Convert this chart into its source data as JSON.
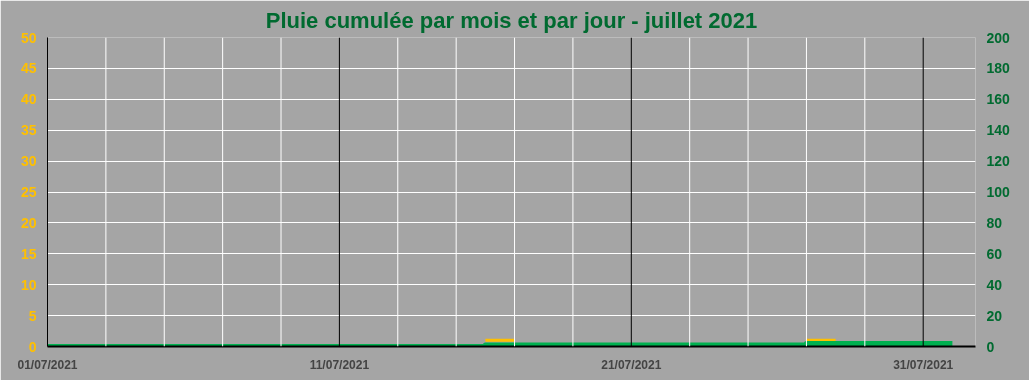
{
  "chart_data": {
    "type": "step",
    "title": "Pluie cumulée par mois et par jour - juillet 2021",
    "x": [
      "2021-07-01",
      "2021-07-02",
      "2021-07-03",
      "2021-07-04",
      "2021-07-05",
      "2021-07-06",
      "2021-07-07",
      "2021-07-08",
      "2021-07-09",
      "2021-07-10",
      "2021-07-11",
      "2021-07-12",
      "2021-07-13",
      "2021-07-14",
      "2021-07-15",
      "2021-07-16",
      "2021-07-17",
      "2021-07-18",
      "2021-07-19",
      "2021-07-20",
      "2021-07-21",
      "2021-07-22",
      "2021-07-23",
      "2021-07-24",
      "2021-07-25",
      "2021-07-26",
      "2021-07-27",
      "2021-07-28",
      "2021-07-29",
      "2021-07-30",
      "2021-07-31",
      "2021-08-01"
    ],
    "series": [
      {
        "color": "#ffc000",
        "type": "line",
        "x": [
          "2021-07-16",
          "2021-07-17",
          "2021-07-22",
          "2021-07-27",
          "2021-07-28"
        ],
        "values": [
          1,
          1,
          null,
          1,
          1
        ]
      },
      {
        "color": "#00b050",
        "axis": "y2",
        "values": [
          0,
          0,
          0,
          0,
          0,
          0,
          0,
          0,
          0,
          0,
          0,
          0,
          0,
          0,
          0,
          1,
          1,
          1,
          1,
          1,
          1,
          1,
          1,
          1,
          1,
          1,
          2,
          2,
          2,
          2,
          2,
          2
        ]
      }
    ],
    "xlim": [
      "2021-07-01",
      "2021-08-01T19:00"
    ],
    "xticks": [
      {
        "value": "2021-07-01",
        "label": "01/07/2021"
      },
      {
        "value": "2021-07-03",
        "label": null
      },
      {
        "value": "2021-07-05",
        "label": null
      },
      {
        "value": "2021-07-07",
        "label": null
      },
      {
        "value": "2021-07-09",
        "label": null
      },
      {
        "value": "2021-07-11",
        "label": "11/07/2021"
      },
      {
        "value": "2021-07-13",
        "label": null
      },
      {
        "value": "2021-07-15",
        "label": null
      },
      {
        "value": "2021-07-17",
        "label": null
      },
      {
        "value": "2021-07-19",
        "label": null
      },
      {
        "value": "2021-07-21",
        "label": "21/07/2021"
      },
      {
        "value": "2021-07-23",
        "label": null
      },
      {
        "value": "2021-07-25",
        "label": null
      },
      {
        "value": "2021-07-27",
        "label": null
      },
      {
        "value": "2021-07-29",
        "label": null
      },
      {
        "value": "2021-07-31",
        "label": "31/07/2021"
      }
    ],
    "ylim": [
      0,
      50
    ],
    "yticks": [
      0,
      5,
      10,
      15,
      20,
      25,
      30,
      35,
      40,
      45,
      50
    ],
    "y2lim": [
      0,
      200
    ],
    "y2ticks": [
      0,
      20,
      40,
      60,
      80,
      100,
      120,
      140,
      160,
      180,
      200
    ],
    "grid": true
  }
}
